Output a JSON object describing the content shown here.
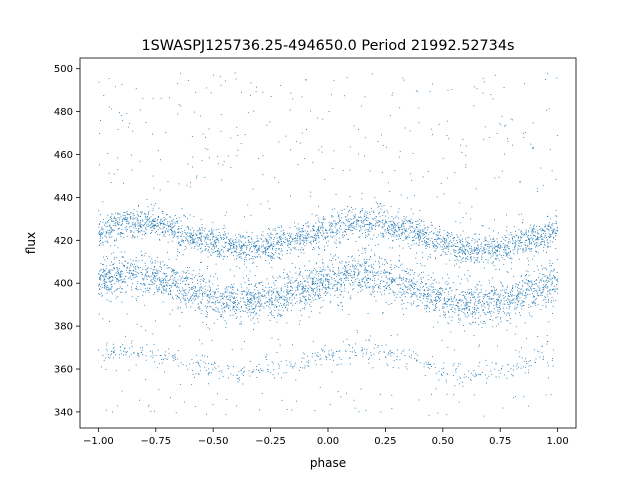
{
  "chart_data": {
    "type": "scatter",
    "title": "1SWASPJ125736.25-494650.0 Period 21992.52734s",
    "xlabel": "phase",
    "ylabel": "flux",
    "xlim": [
      -1.08,
      1.08
    ],
    "ylim": [
      332.5,
      505
    ],
    "xticks": [
      -1.0,
      -0.75,
      -0.5,
      -0.25,
      0.0,
      0.25,
      0.5,
      0.75,
      1.0
    ],
    "xtick_labels": [
      "−1.00",
      "−0.75",
      "−0.50",
      "−0.25",
      "0.00",
      "0.25",
      "0.50",
      "0.75",
      "1.00"
    ],
    "yticks": [
      340,
      360,
      380,
      400,
      420,
      440,
      460,
      480,
      500
    ],
    "ytick_labels": [
      "340",
      "360",
      "380",
      "400",
      "420",
      "440",
      "460",
      "480",
      "500"
    ],
    "grid": false,
    "legend": "none",
    "marker_color": "#1f77b4",
    "series": [
      {
        "x": [
          -1.0,
          -0.875,
          -0.75,
          -0.625,
          -0.5,
          -0.375,
          -0.25,
          -0.125,
          0.0,
          0.125,
          0.25,
          0.375,
          0.5,
          0.625,
          0.75,
          0.875,
          1.0
        ],
        "upper_band_center": [
          424,
          428,
          428,
          423,
          418,
          416,
          417,
          421,
          425,
          428,
          428,
          424,
          418,
          415,
          416,
          420,
          424
        ],
        "lower_band_center": [
          401,
          404,
          403,
          398,
          393,
          391,
          392,
          396,
          401,
          404,
          403,
          398,
          392,
          390,
          392,
          396,
          401
        ],
        "faint_band_center": [
          367,
          369,
          368,
          364,
          360,
          358,
          359,
          363,
          367,
          369,
          368,
          363,
          359,
          357,
          358,
          362,
          367
        ],
        "band_halfwidth": [
          6,
          8,
          4
        ],
        "scatter_range": [
          338,
          498
        ]
      }
    ]
  }
}
